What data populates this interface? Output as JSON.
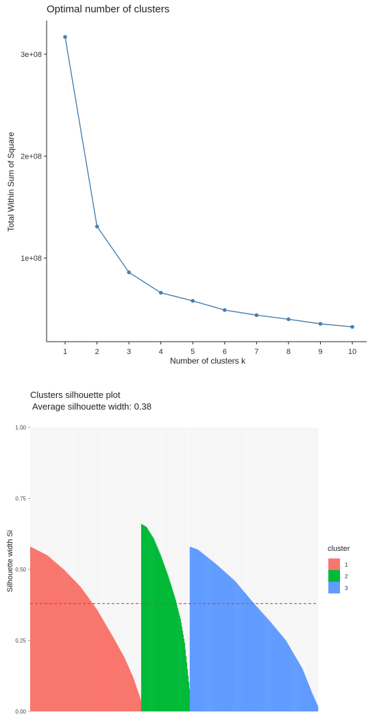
{
  "chart_data": [
    {
      "type": "line",
      "title": "Optimal number of clusters",
      "xlabel": "Number of clusters k",
      "ylabel": "Total Within Sum of Square",
      "x": [
        1,
        2,
        3,
        4,
        5,
        6,
        7,
        8,
        9,
        10
      ],
      "values": [
        317000000,
        131000000,
        86000000,
        66000000,
        58000000,
        49000000,
        44000000,
        40000000,
        35500000,
        32500000
      ],
      "xticks": [
        "1",
        "2",
        "3",
        "4",
        "5",
        "6",
        "7",
        "8",
        "9",
        "10"
      ],
      "yticks": [
        {
          "value": 100000000,
          "label": "1e+08"
        },
        {
          "value": 200000000,
          "label": "2e+08"
        },
        {
          "value": 300000000,
          "label": "3e+08"
        }
      ],
      "ylim": [
        18000000,
        333000000
      ],
      "color": "#4a7fb0",
      "grid": false
    },
    {
      "type": "bar",
      "title": "Clusters silhouette plot",
      "subtitle": "Average silhouette width: 0.38",
      "xlabel": "",
      "ylabel": "Silhouette width Si",
      "ylim": [
        0,
        1
      ],
      "yticks": [
        "0.00",
        "0.25",
        "0.50",
        "0.75",
        "1.00"
      ],
      "average_line": 0.38,
      "average_line_color": "#e03b2e",
      "legend_title": "cluster",
      "legend_position": "right",
      "series": [
        {
          "name": "1",
          "color": "#f8766d",
          "count": 160,
          "profile": [
            [
              0,
              0.58
            ],
            [
              0.05,
              0.57
            ],
            [
              0.15,
              0.55
            ],
            [
              0.3,
              0.5
            ],
            [
              0.45,
              0.44
            ],
            [
              0.6,
              0.36
            ],
            [
              0.75,
              0.26
            ],
            [
              0.85,
              0.19
            ],
            [
              0.93,
              0.12
            ],
            [
              1.0,
              0.04
            ]
          ]
        },
        {
          "name": "2",
          "color": "#00ba38",
          "count": 70,
          "profile": [
            [
              0,
              0.66
            ],
            [
              0.1,
              0.65
            ],
            [
              0.25,
              0.61
            ],
            [
              0.4,
              0.55
            ],
            [
              0.55,
              0.48
            ],
            [
              0.7,
              0.4
            ],
            [
              0.82,
              0.32
            ],
            [
              0.9,
              0.24
            ],
            [
              1.0,
              0.08
            ]
          ]
        },
        {
          "name": "3",
          "color": "#619cff",
          "count": 185,
          "profile": [
            [
              0,
              0.58
            ],
            [
              0.06,
              0.57
            ],
            [
              0.2,
              0.52
            ],
            [
              0.35,
              0.46
            ],
            [
              0.5,
              0.38
            ],
            [
              0.62,
              0.32
            ],
            [
              0.75,
              0.25
            ],
            [
              0.88,
              0.15
            ],
            [
              0.96,
              0.06
            ],
            [
              1.0,
              0.02
            ]
          ]
        }
      ]
    }
  ]
}
